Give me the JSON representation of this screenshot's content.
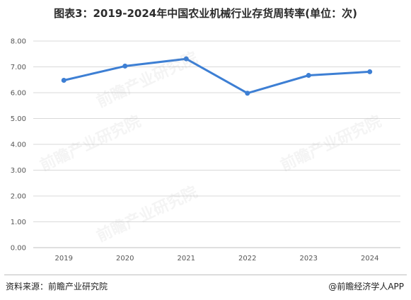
{
  "title": "图表3：2019-2024年中国农业机械行业存货周转率(单位：次)",
  "source": "资料来源：前瞻产业研究院",
  "brand": "@前瞻经济学人APP",
  "watermark_text": "前瞻产业研究院",
  "colors": {
    "line": "#3d7fd4",
    "grid": "#d9d9d9",
    "axis": "#bfbfbf"
  },
  "chart_data": {
    "type": "line",
    "title": "图表3：2019-2024年中国农业机械行业存货周转率(单位：次)",
    "xlabel": "",
    "ylabel": "",
    "categories": [
      "2019",
      "2020",
      "2021",
      "2022",
      "2023",
      "2024"
    ],
    "series": [
      {
        "values": [
          6.48,
          7.03,
          7.31,
          5.98,
          6.67,
          6.81
        ]
      }
    ],
    "ylim": [
      0,
      8
    ],
    "yticks": [
      "0.00",
      "1.00",
      "2.00",
      "3.00",
      "4.00",
      "5.00",
      "6.00",
      "7.00",
      "8.00"
    ],
    "grid": true,
    "legend": "none"
  }
}
